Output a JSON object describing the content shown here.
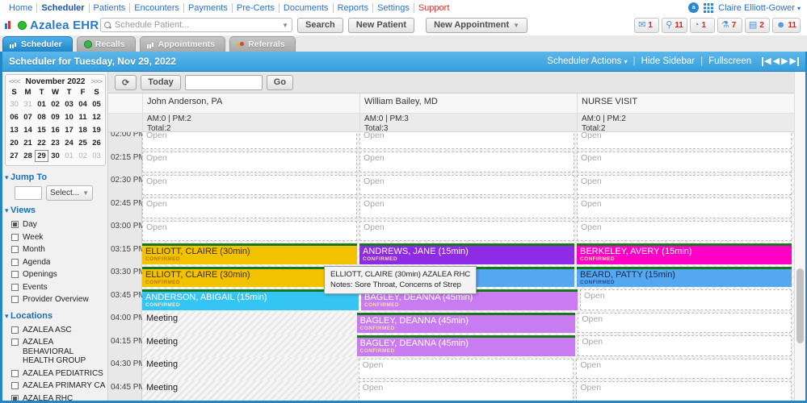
{
  "top_nav": {
    "links": [
      {
        "label": "Home"
      },
      {
        "label": "Scheduler",
        "active": true
      },
      {
        "label": "Patients"
      },
      {
        "label": "Encounters"
      },
      {
        "label": "Payments"
      },
      {
        "label": "Pre-Certs"
      },
      {
        "label": "Documents"
      },
      {
        "label": "Reports"
      },
      {
        "label": "Settings"
      },
      {
        "label": "Support",
        "support": true
      }
    ],
    "user_name": "Claire Elliott-Gower"
  },
  "toolbar": {
    "brand": "Azalea EHR",
    "search_placeholder": "Schedule Patient...",
    "search_label": "Search",
    "new_patient_label": "New Patient",
    "new_appointment_label": "New Appointment",
    "badges": [
      {
        "icon": "envelope-icon",
        "glyph": "✉",
        "count": "1"
      },
      {
        "icon": "pushpin-icon",
        "glyph": "⚲",
        "count": "11"
      },
      {
        "icon": "refill-dial-icon",
        "glyph": "◔",
        "count": "1"
      },
      {
        "icon": "lab-flask-icon",
        "glyph": "⚗",
        "count": "7"
      },
      {
        "icon": "fax-icon",
        "glyph": "▤",
        "count": "2"
      },
      {
        "icon": "patient-queue-icon",
        "glyph": "☻",
        "count": "11"
      }
    ]
  },
  "tabs": [
    {
      "label": "Scheduler",
      "icon": "scheduler-bars-icon",
      "style": "bars",
      "active": true
    },
    {
      "label": "Recalls",
      "icon": "recalls-clock-icon",
      "style": "clock",
      "active": false
    },
    {
      "label": "Appointments",
      "icon": "appointments-calendar-icon",
      "style": "bars",
      "active": false
    },
    {
      "label": "Referrals",
      "icon": "referrals-people-icon",
      "style": "people",
      "active": false
    }
  ],
  "scheduler_bar": {
    "title": "Scheduler for Tuesday, Nov 29, 2022",
    "actions_label": "Scheduler Actions",
    "hide_sidebar_label": "Hide Sidebar",
    "fullscreen_label": "Fullscreen"
  },
  "controls": {
    "today_label": "Today",
    "go_label": "Go",
    "date_value": ""
  },
  "sidebar": {
    "calendar": {
      "prev": "<<<",
      "month": "November 2022",
      "next": ">>>",
      "day_headers": [
        "S",
        "M",
        "T",
        "W",
        "T",
        "F",
        "S"
      ],
      "weeks": [
        [
          {
            "d": "30",
            "m": 1
          },
          {
            "d": "31",
            "m": 1
          },
          {
            "d": "01"
          },
          {
            "d": "02"
          },
          {
            "d": "03"
          },
          {
            "d": "04"
          },
          {
            "d": "05"
          }
        ],
        [
          {
            "d": "06"
          },
          {
            "d": "07"
          },
          {
            "d": "08"
          },
          {
            "d": "09"
          },
          {
            "d": "10"
          },
          {
            "d": "11"
          },
          {
            "d": "12"
          }
        ],
        [
          {
            "d": "13"
          },
          {
            "d": "14"
          },
          {
            "d": "15"
          },
          {
            "d": "16"
          },
          {
            "d": "17"
          },
          {
            "d": "18"
          },
          {
            "d": "19"
          }
        ],
        [
          {
            "d": "20"
          },
          {
            "d": "21"
          },
          {
            "d": "22"
          },
          {
            "d": "23"
          },
          {
            "d": "24"
          },
          {
            "d": "25"
          },
          {
            "d": "26"
          }
        ],
        [
          {
            "d": "27"
          },
          {
            "d": "28"
          },
          {
            "d": "29",
            "sel": 1
          },
          {
            "d": "30"
          },
          {
            "d": "01",
            "m": 1
          },
          {
            "d": "02",
            "m": 1
          },
          {
            "d": "03",
            "m": 1
          }
        ]
      ]
    },
    "jump_to": {
      "label": "Jump To",
      "select_label": "Select...",
      "input_value": ""
    },
    "views": {
      "label": "Views",
      "items": [
        {
          "label": "Day",
          "checked": true
        },
        {
          "label": "Week",
          "checked": false
        },
        {
          "label": "Month",
          "checked": false
        },
        {
          "label": "Agenda",
          "checked": false
        },
        {
          "label": "Openings",
          "checked": false
        },
        {
          "label": "Events",
          "checked": false
        },
        {
          "label": "Provider Overview",
          "checked": false
        }
      ]
    },
    "locations": {
      "label": "Locations",
      "items": [
        {
          "label": "AZALEA ASC",
          "checked": false
        },
        {
          "label": "AZALEA BEHAVIORAL HEALTH GROUP",
          "checked": false,
          "wrap": true
        },
        {
          "label": "AZALEA PEDIATRICS",
          "checked": false
        },
        {
          "label": "AZALEA PRIMARY CARE",
          "checked": false
        },
        {
          "label": "AZALEA RHC",
          "checked": true
        }
      ]
    }
  },
  "grid": {
    "open_label": "Open",
    "meeting_label": "Meeting",
    "status_confirmed": "CONFIRMED",
    "green_bar_color": "#177817",
    "columns": [
      {
        "name": "John Anderson, PA",
        "am_pm": "AM:0 | PM:2",
        "total": "Total:2"
      },
      {
        "name": "William Bailey, MD",
        "am_pm": "AM:0 | PM:3",
        "total": "Total:3"
      },
      {
        "name": "NURSE VISIT",
        "am_pm": "AM:0 | PM:2",
        "total": "Total:2"
      }
    ],
    "rows": [
      {
        "time": "02:00 PM",
        "cells": [
          {
            "t": "open"
          },
          {
            "t": "open"
          },
          {
            "t": "open"
          }
        ]
      },
      {
        "time": "02:15 PM",
        "cells": [
          {
            "t": "open"
          },
          {
            "t": "open"
          },
          {
            "t": "open"
          }
        ]
      },
      {
        "time": "02:30 PM",
        "cells": [
          {
            "t": "open"
          },
          {
            "t": "open"
          },
          {
            "t": "open"
          }
        ]
      },
      {
        "time": "02:45 PM",
        "cells": [
          {
            "t": "open"
          },
          {
            "t": "open"
          },
          {
            "t": "open"
          }
        ]
      },
      {
        "time": "03:00 PM",
        "cells": [
          {
            "t": "open"
          },
          {
            "t": "open"
          },
          {
            "t": "open"
          }
        ]
      },
      {
        "time": "03:15 PM",
        "cells": [
          {
            "t": "appt",
            "n": "ELLIOTT, CLAIRE (30min)",
            "s": "CONFIRMED",
            "bg": "#f2c100",
            "fg": "#3a3000",
            "sf": "#bf7a00"
          },
          {
            "t": "appt",
            "n": "ANDREWS, JANE (15min)",
            "s": "CONFIRMED",
            "bg": "#8e2be5",
            "fg": "#ffffff",
            "sf": "#f0d9a0"
          },
          {
            "t": "appt",
            "n": "BERKELEY, AVERY (15min)",
            "s": "CONFIRMED",
            "bg": "#ff00c4",
            "fg": "#ffffff",
            "sf": "#ffe2b0"
          }
        ]
      },
      {
        "time": "03:30 PM",
        "cells": [
          {
            "t": "appt",
            "n": "ELLIOTT, CLAIRE (30min)",
            "s": "CONFIRMED",
            "bg": "#f2c100",
            "fg": "#3a3000",
            "sf": "#bf7a00"
          },
          {
            "t": "appt",
            "n": "",
            "s": "",
            "bg": "#55a7f0",
            "fg": "#1a2f55",
            "sf": "#27548f"
          },
          {
            "t": "appt",
            "n": "BEARD, PATTY (15min)",
            "s": "CONFIRMED",
            "bg": "#55a7f0",
            "fg": "#1a2748",
            "sf": "#1f4f8f"
          }
        ]
      },
      {
        "time": "03:45 PM",
        "cells": [
          {
            "t": "appt",
            "n": "ANDERSON, ABIGAIL (15min)",
            "s": "CONFIRMED",
            "bg": "#35c5f4",
            "fg": "#ffffff",
            "sf": "#f2ecc0"
          },
          {
            "t": "appt",
            "n": "BAGLEY, DEANNA (45min)",
            "s": "CONFIRMED",
            "bg": "#c97bf2",
            "fg": "#ffffff",
            "sf": "#f2dcae"
          },
          {
            "t": "open"
          }
        ]
      },
      {
        "time": "04:00 PM",
        "cells": [
          {
            "t": "meeting"
          },
          {
            "t": "appt",
            "n": "BAGLEY, DEANNA (45min)",
            "s": "CONFIRMED",
            "bg": "#c97bf2",
            "fg": "#ffffff",
            "sf": "#f2dcae"
          },
          {
            "t": "open"
          }
        ]
      },
      {
        "time": "04:15 PM",
        "cells": [
          {
            "t": "meeting"
          },
          {
            "t": "appt",
            "n": "BAGLEY, DEANNA (45min)",
            "s": "CONFIRMED",
            "bg": "#c97bf2",
            "fg": "#ffffff",
            "sf": "#f2dcae"
          },
          {
            "t": "open"
          }
        ]
      },
      {
        "time": "04:30 PM",
        "cells": [
          {
            "t": "meeting"
          },
          {
            "t": "open"
          },
          {
            "t": "open"
          }
        ]
      },
      {
        "time": "04:45 PM",
        "cells": [
          {
            "t": "meeting"
          },
          {
            "t": "open"
          },
          {
            "t": "open"
          }
        ]
      }
    ],
    "tooltip": {
      "line1": "ELLIOTT, CLAIRE (30min) AZALEA RHC",
      "line2": "Notes: Sore Throat, Concerns of Strep"
    }
  }
}
